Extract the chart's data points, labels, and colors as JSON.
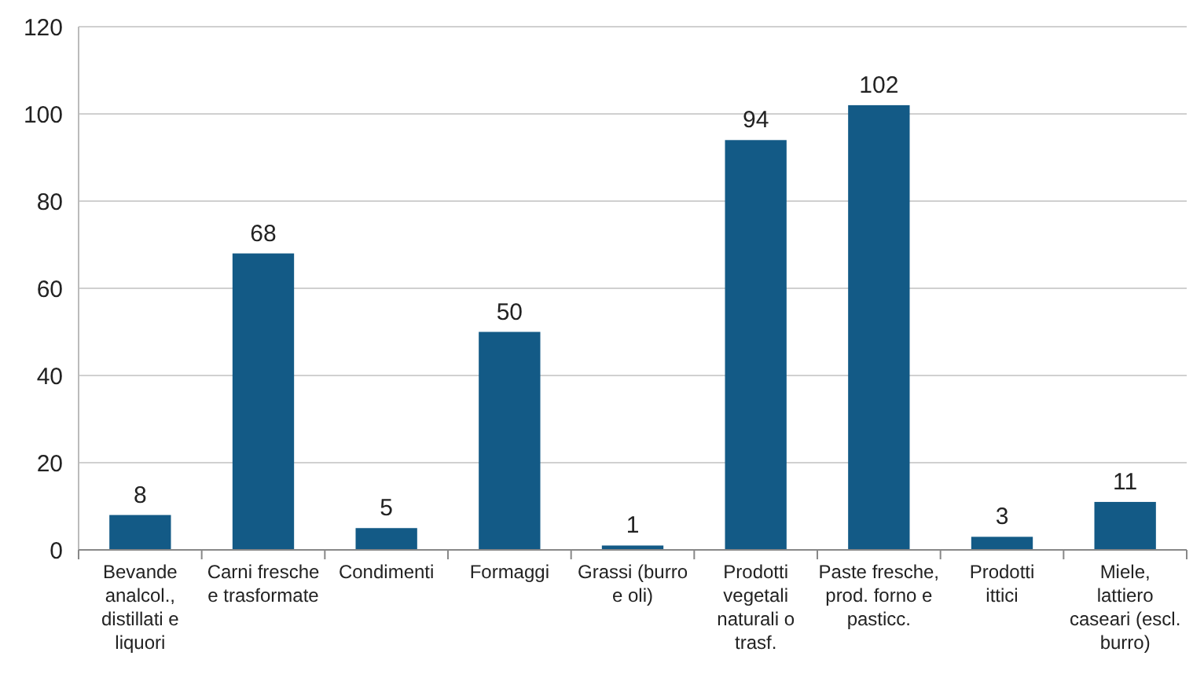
{
  "chart_data": {
    "type": "bar",
    "categories": [
      "Bevande analcol., distillati e liquori",
      "Carni fresche e trasformate",
      "Condimenti",
      "Formaggi",
      "Grassi (burro e oli)",
      "Prodotti vegetali naturali o trasf.",
      "Paste fresche, prod. forno e pasticc.",
      "Prodotti ittici",
      "Miele, lattiero caseari (escl. burro)"
    ],
    "values": [
      8,
      68,
      5,
      50,
      1,
      94,
      102,
      3,
      11
    ],
    "color": "#135a86",
    "ylim": [
      0,
      120
    ],
    "yticks": [
      0,
      20,
      40,
      60,
      80,
      100,
      120
    ],
    "grid": "y",
    "data_labels": true
  }
}
